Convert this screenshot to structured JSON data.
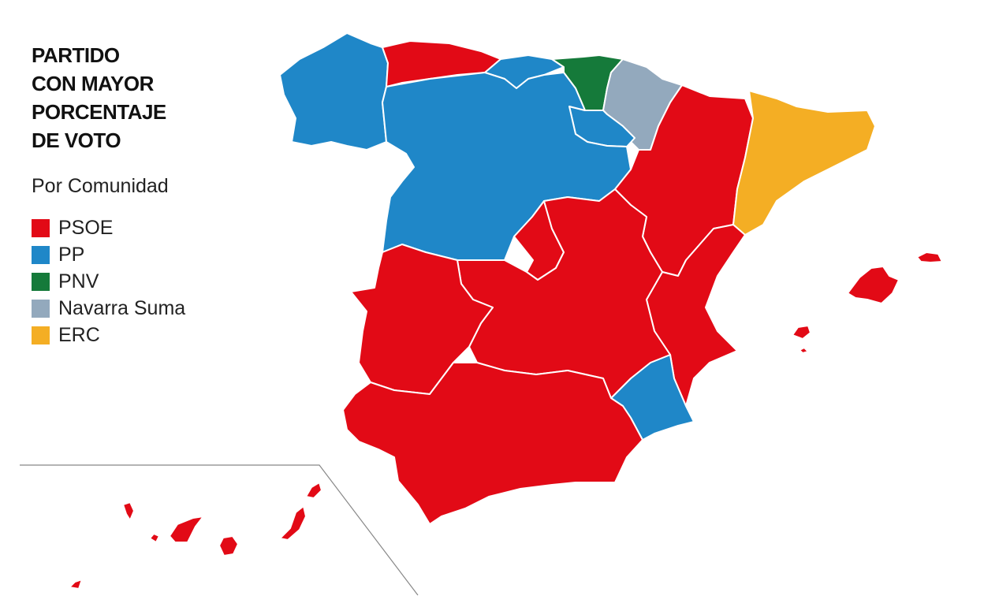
{
  "title": [
    "PARTIDO",
    "CON MAYOR",
    "PORCENTAJE",
    "DE VOTO"
  ],
  "subtitle": "Por Comunidad",
  "legend": [
    {
      "label": "PSOE",
      "color": "#e20a16"
    },
    {
      "label": "PP",
      "color": "#1f87c8"
    },
    {
      "label": "PNV",
      "color": "#157a3a"
    },
    {
      "label": "Navarra Suma",
      "color": "#93a9bd"
    },
    {
      "label": "ERC",
      "color": "#f4ae24"
    }
  ],
  "map": {
    "regions": {
      "galicia": "PP",
      "asturias": "PSOE",
      "cantabria": "PP",
      "pais-vasco": "PNV",
      "navarra": "Navarra Suma",
      "la-rioja": "PP",
      "castilla-y-leon": "PP",
      "madrid": "PSOE",
      "aragon": "PSOE",
      "cataluna": "ERC",
      "comunidad-valenciana": "PSOE",
      "murcia": "PP",
      "castilla-la-mancha": "PSOE",
      "extremadura": "PSOE",
      "andalucia": "PSOE",
      "baleares": "PSOE",
      "canarias": "PSOE"
    }
  }
}
